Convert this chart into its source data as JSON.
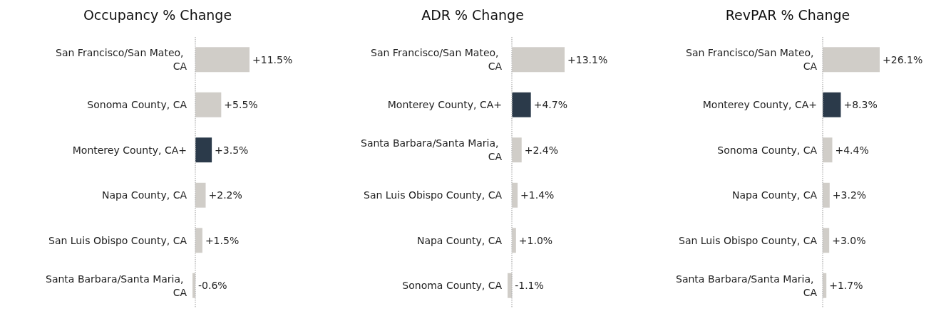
{
  "chart_data": [
    {
      "type": "bar",
      "orientation": "horizontal",
      "title": "Occupancy % Change",
      "categories": [
        "San Francisco/San Mateo, CA",
        "Sonoma County, CA",
        "Monterey County, CA+",
        "Napa County, CA",
        "San Luis Obispo County, CA",
        "Santa Barbara/Santa Maria, CA"
      ],
      "values": [
        11.5,
        5.5,
        3.5,
        2.2,
        1.5,
        -0.6
      ],
      "colors": [
        "#d0cdc8",
        "#d0cdc8",
        "#2b3a4a",
        "#d0cdc8",
        "#d0cdc8",
        "#d0cdc8"
      ],
      "value_labels": [
        "+11.5%",
        "+5.5%",
        "+3.5%",
        "+2.2%",
        "+1.5%",
        "-0.6%"
      ],
      "ref_lines": [
        {
          "axis": "x",
          "value": 0,
          "color": "#bbbbbb",
          "line_style": "dotted"
        }
      ]
    },
    {
      "type": "bar",
      "orientation": "horizontal",
      "title": "ADR % Change",
      "categories": [
        "San Francisco/San Mateo, CA",
        "Monterey County, CA+",
        "Santa Barbara/Santa Maria, CA",
        "San Luis Obispo County, CA",
        "Napa County, CA",
        "Sonoma County, CA"
      ],
      "values": [
        13.1,
        4.7,
        2.4,
        1.4,
        1.0,
        -1.1
      ],
      "colors": [
        "#d0cdc8",
        "#2b3a4a",
        "#d0cdc8",
        "#d0cdc8",
        "#d0cdc8",
        "#d0cdc8"
      ],
      "value_labels": [
        "+13.1%",
        "+4.7%",
        "+2.4%",
        "+1.4%",
        "+1.0%",
        "-1.1%"
      ],
      "ref_lines": [
        {
          "axis": "x",
          "value": 0,
          "color": "#bbbbbb",
          "line_style": "dotted"
        }
      ]
    },
    {
      "type": "bar",
      "orientation": "horizontal",
      "title": "RevPAR % Change",
      "categories": [
        "San Francisco/San Mateo, CA",
        "Monterey County, CA+",
        "Sonoma County, CA",
        "Napa County, CA",
        "San Luis Obispo County, CA",
        "Santa Barbara/Santa Maria, CA"
      ],
      "values": [
        26.1,
        8.3,
        4.4,
        3.2,
        3.0,
        1.7
      ],
      "colors": [
        "#d0cdc8",
        "#2b3a4a",
        "#d0cdc8",
        "#d0cdc8",
        "#d0cdc8",
        "#d0cdc8"
      ],
      "value_labels": [
        "+26.1%",
        "+8.3%",
        "+4.4%",
        "+3.2%",
        "+3.0%",
        "+1.7%"
      ],
      "ref_lines": [
        {
          "axis": "x",
          "value": 0,
          "color": "#bbbbbb",
          "line_style": "dotted"
        }
      ]
    }
  ]
}
